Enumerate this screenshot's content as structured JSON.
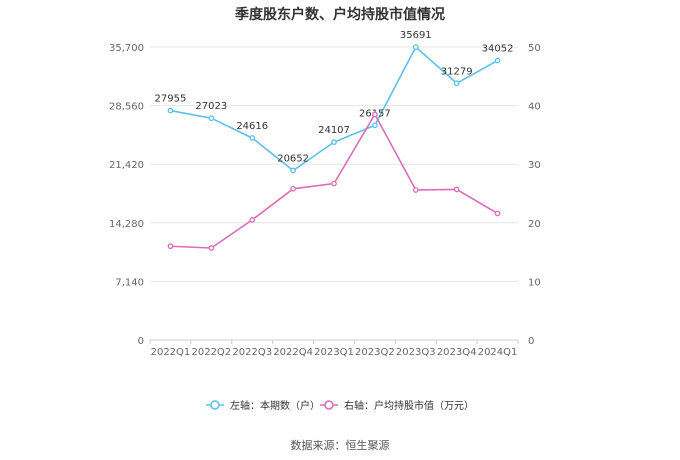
{
  "chart_data": {
    "type": "line",
    "title": "季度股东户数、户均持股市值情况",
    "source": "数据来源：恒生聚源",
    "categories": [
      "2022Q1",
      "2022Q2",
      "2022Q3",
      "2022Q4",
      "2023Q1",
      "2023Q2",
      "2023Q3",
      "2023Q4",
      "2024Q1"
    ],
    "left_axis": {
      "min": 0,
      "max": 35700,
      "ticks": [
        "0",
        "7,140",
        "14,280",
        "21,420",
        "28,560",
        "35,700"
      ],
      "tick_values": [
        0,
        7140,
        14280,
        21420,
        28560,
        35700
      ]
    },
    "right_axis": {
      "min": 0,
      "max": 50,
      "ticks": [
        "0",
        "10",
        "20",
        "30",
        "40",
        "50"
      ],
      "tick_values": [
        0,
        10,
        20,
        30,
        40,
        50
      ]
    },
    "grid": true,
    "legend_position": "bottom",
    "series": [
      {
        "name": "左轴：本期数（户）",
        "axis": "left",
        "color": "#5bc0ea",
        "values": [
          27955,
          27023,
          24616,
          20652,
          24107,
          26157,
          35691,
          31279,
          34052
        ],
        "labels": [
          "27955",
          "27023",
          "24616",
          "20652",
          "24107",
          "26157",
          "35691",
          "31279",
          "34052"
        ]
      },
      {
        "name": "右轴：户均持股市值（万元）",
        "axis": "right",
        "color": "#dc6cb8",
        "values": [
          16.0,
          15.7,
          20.5,
          25.8,
          26.7,
          38.5,
          25.6,
          25.7,
          21.6
        ]
      }
    ]
  }
}
